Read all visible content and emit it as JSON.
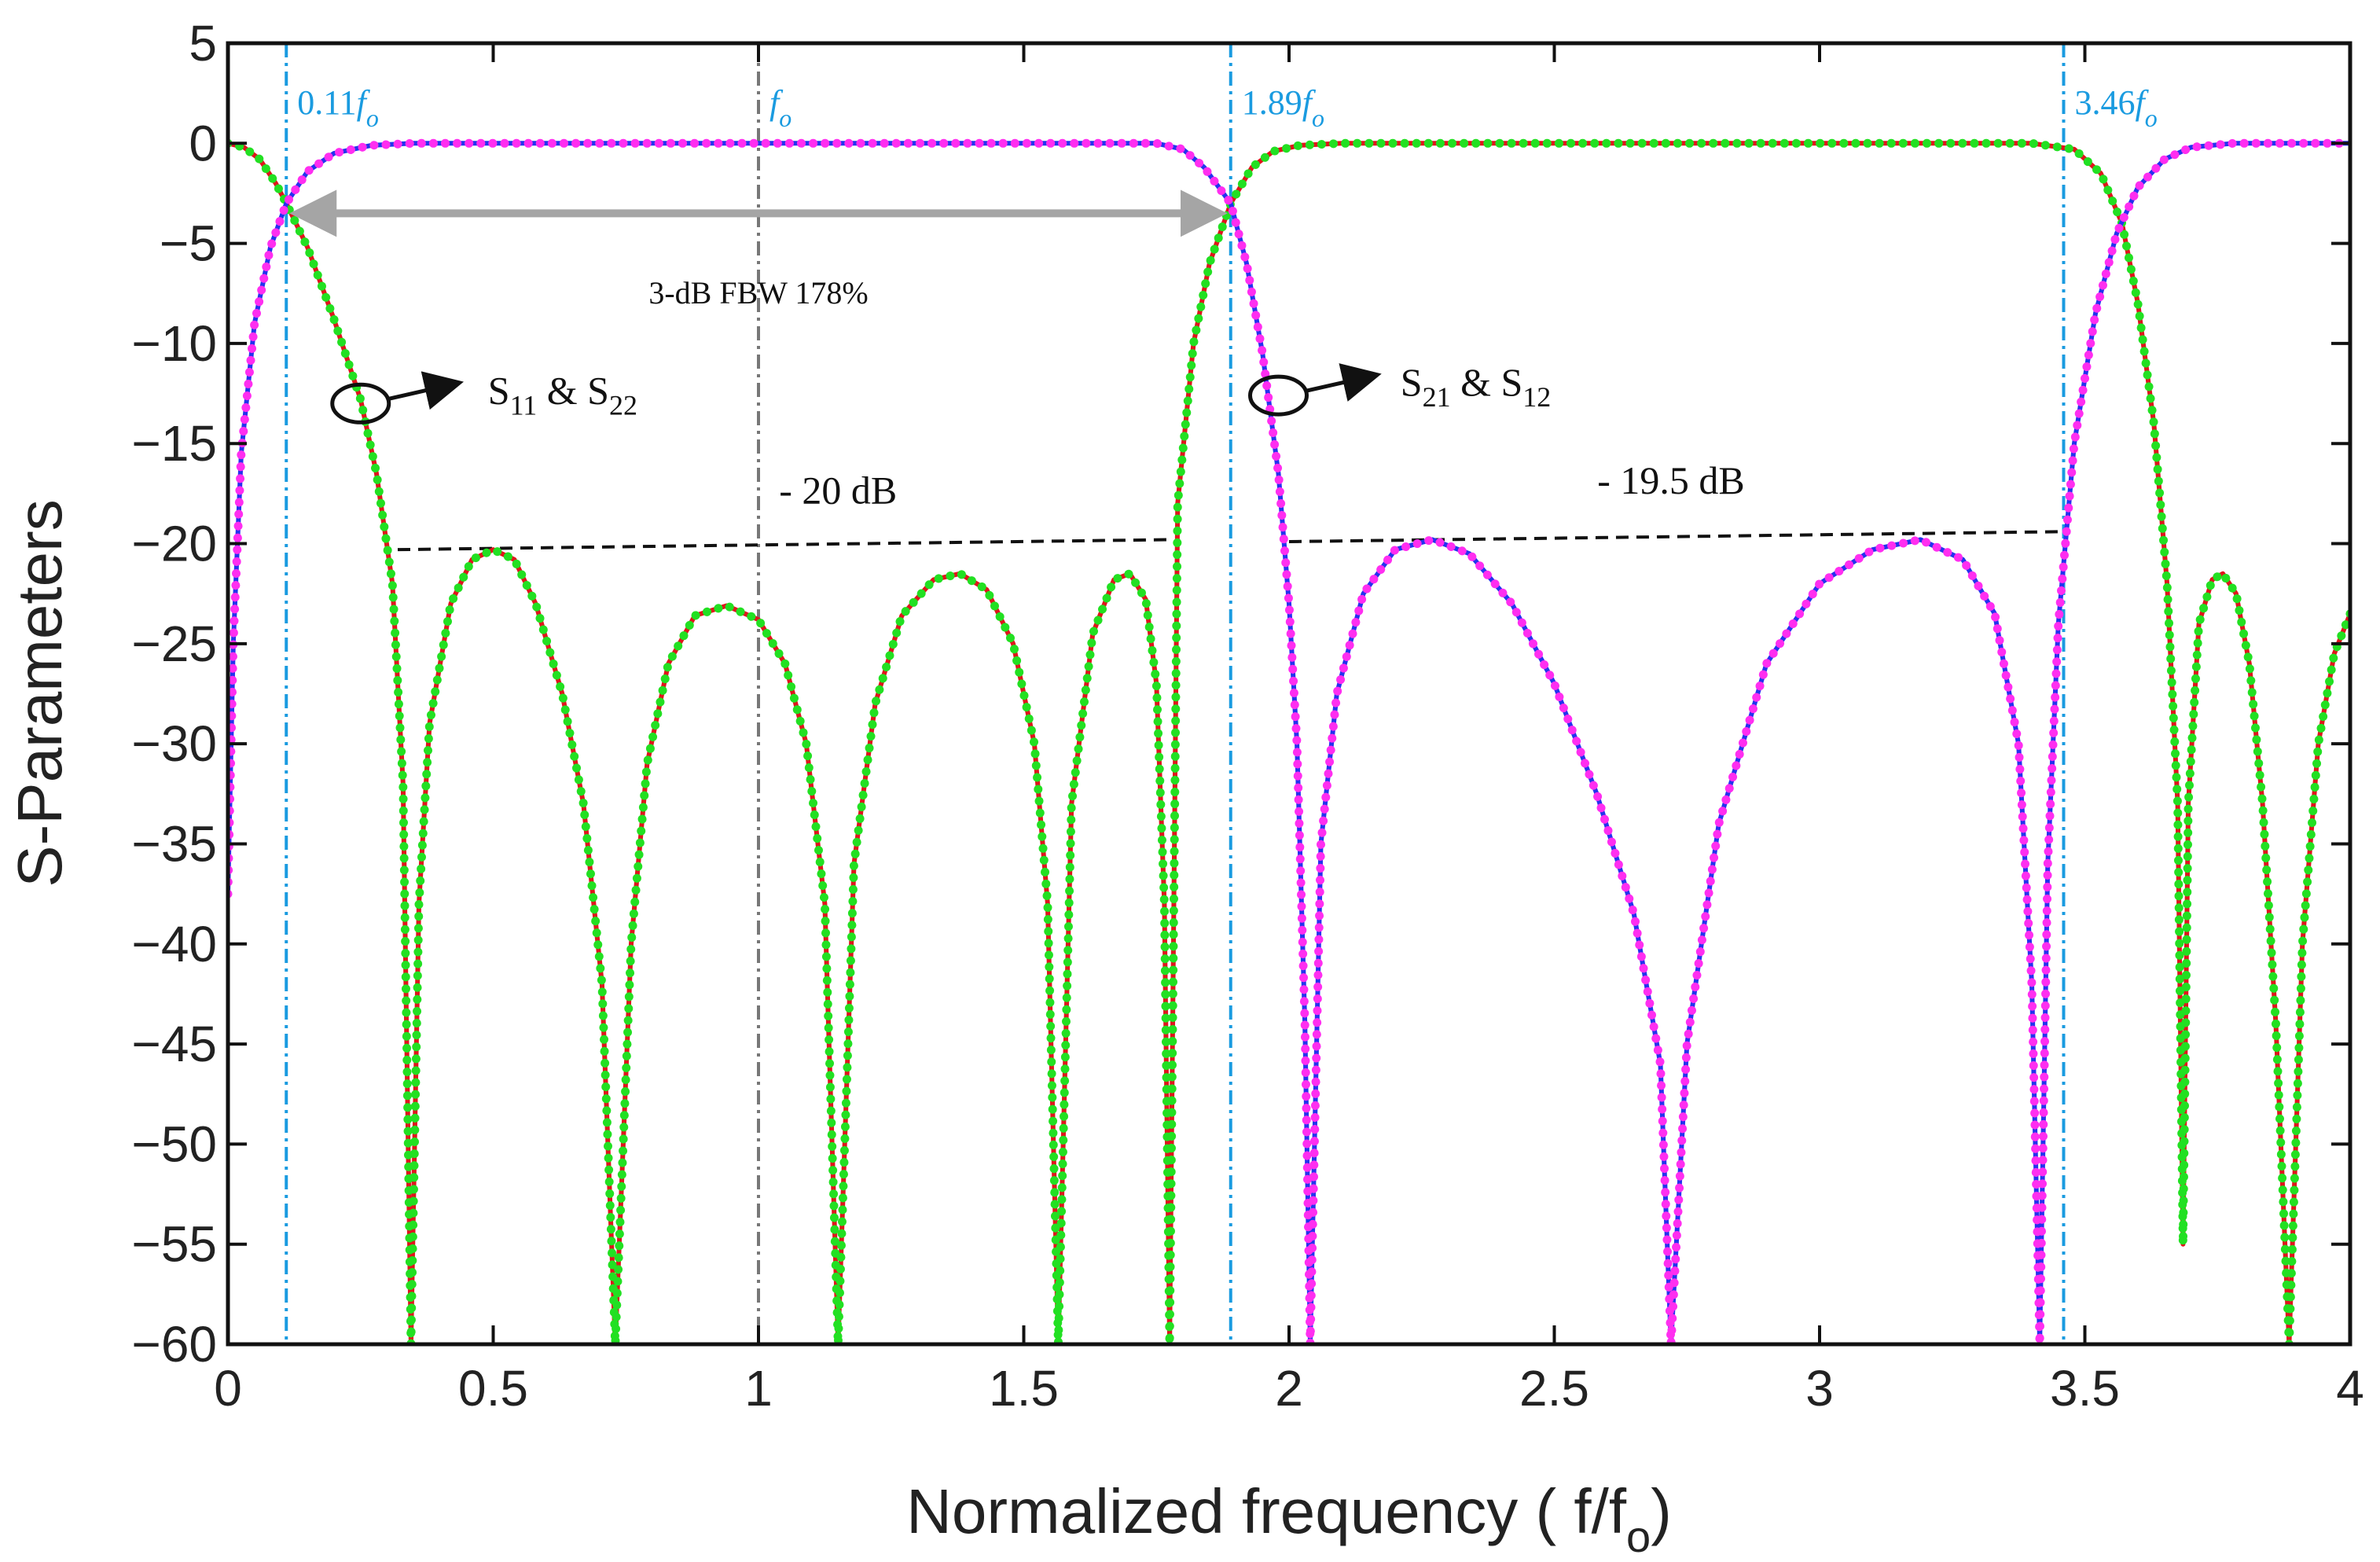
{
  "chart_data": {
    "type": "line",
    "xlabel": "Normalized frequency ( f/f",
    "xlabel_sub": "o",
    "xlabel_end": ")",
    "ylabel": "S-Parameters",
    "xlim": [
      0,
      4
    ],
    "ylim": [
      -60,
      5
    ],
    "xticks": [
      "0",
      "0.5",
      "1",
      "1.5",
      "2",
      "2.5",
      "3",
      "3.5",
      "4"
    ],
    "yticks": [
      "5",
      "0",
      "−5",
      "−10",
      "−15",
      "−20",
      "−25",
      "−30",
      "−35",
      "−40",
      "−45",
      "−50",
      "−55",
      "−60"
    ],
    "xtick_values": [
      0,
      0.5,
      1,
      1.5,
      2,
      2.5,
      3,
      3.5,
      4
    ],
    "ytick_values": [
      5,
      0,
      -5,
      -10,
      -15,
      -20,
      -25,
      -30,
      -35,
      -40,
      -45,
      -50,
      -55,
      -60
    ],
    "series": [
      {
        "name": "S11 & S22",
        "line_color": "#e0141c",
        "dot_color": "#22e022",
        "points": [
          [
            0.0,
            0.0
          ],
          [
            0.03,
            -0.2
          ],
          [
            0.06,
            -0.8
          ],
          [
            0.09,
            -2.0
          ],
          [
            0.11,
            -3.0
          ],
          [
            0.15,
            -5.2
          ],
          [
            0.2,
            -8.8
          ],
          [
            0.25,
            -12.8
          ],
          [
            0.28,
            -16.5
          ],
          [
            0.31,
            -22.0
          ],
          [
            0.33,
            -32.0
          ],
          [
            0.345,
            -60.0
          ],
          [
            0.36,
            -38.0
          ],
          [
            0.38,
            -29.0
          ],
          [
            0.42,
            -23.0
          ],
          [
            0.46,
            -20.8
          ],
          [
            0.5,
            -20.3
          ],
          [
            0.54,
            -20.8
          ],
          [
            0.58,
            -23.0
          ],
          [
            0.63,
            -27.5
          ],
          [
            0.67,
            -33.0
          ],
          [
            0.705,
            -42.0
          ],
          [
            0.73,
            -60.0
          ],
          [
            0.76,
            -40.0
          ],
          [
            0.79,
            -31.0
          ],
          [
            0.83,
            -26.0
          ],
          [
            0.88,
            -23.6
          ],
          [
            0.94,
            -23.1
          ],
          [
            1.0,
            -23.8
          ],
          [
            1.05,
            -26.0
          ],
          [
            1.09,
            -30.0
          ],
          [
            1.125,
            -38.0
          ],
          [
            1.15,
            -60.0
          ],
          [
            1.18,
            -36.0
          ],
          [
            1.22,
            -28.0
          ],
          [
            1.27,
            -23.6
          ],
          [
            1.33,
            -21.8
          ],
          [
            1.38,
            -21.5
          ],
          [
            1.43,
            -22.3
          ],
          [
            1.48,
            -25.0
          ],
          [
            1.52,
            -30.0
          ],
          [
            1.545,
            -38.0
          ],
          [
            1.565,
            -60.0
          ],
          [
            1.59,
            -33.0
          ],
          [
            1.63,
            -24.5
          ],
          [
            1.67,
            -21.8
          ],
          [
            1.7,
            -21.5
          ],
          [
            1.73,
            -22.8
          ],
          [
            1.75,
            -27.0
          ],
          [
            1.765,
            -38.0
          ],
          [
            1.775,
            -60.0
          ],
          [
            1.79,
            -18.0
          ],
          [
            1.82,
            -10.0
          ],
          [
            1.85,
            -6.0
          ],
          [
            1.89,
            -3.0
          ],
          [
            1.93,
            -1.2
          ],
          [
            1.97,
            -0.4
          ],
          [
            2.02,
            -0.1
          ],
          [
            2.1,
            0.0
          ],
          [
            3.4,
            0.0
          ],
          [
            3.48,
            -0.3
          ],
          [
            3.53,
            -1.5
          ],
          [
            3.57,
            -4.0
          ],
          [
            3.6,
            -8.0
          ],
          [
            3.63,
            -14.0
          ],
          [
            3.655,
            -22.0
          ],
          [
            3.675,
            -33.0
          ],
          [
            3.685,
            -55.0
          ],
          [
            3.695,
            -33.0
          ],
          [
            3.715,
            -24.0
          ],
          [
            3.74,
            -21.8
          ],
          [
            3.76,
            -21.5
          ],
          [
            3.785,
            -22.5
          ],
          [
            3.81,
            -26.0
          ],
          [
            3.835,
            -33.0
          ],
          [
            3.86,
            -44.0
          ],
          [
            3.885,
            -60.0
          ],
          [
            3.91,
            -40.0
          ],
          [
            3.94,
            -30.0
          ],
          [
            3.97,
            -25.5
          ],
          [
            4.0,
            -23.5
          ]
        ]
      },
      {
        "name": "S21 & S12",
        "line_color": "#2233ee",
        "dot_color": "#ff2ef0",
        "points": [
          [
            0.0,
            -37.5
          ],
          [
            0.01,
            -25.0
          ],
          [
            0.025,
            -15.5
          ],
          [
            0.05,
            -9.0
          ],
          [
            0.08,
            -5.2
          ],
          [
            0.11,
            -3.0
          ],
          [
            0.15,
            -1.4
          ],
          [
            0.2,
            -0.5
          ],
          [
            0.27,
            -0.1
          ],
          [
            0.35,
            0.0
          ],
          [
            1.75,
            0.0
          ],
          [
            1.8,
            -0.3
          ],
          [
            1.84,
            -1.2
          ],
          [
            1.89,
            -3.0
          ],
          [
            1.92,
            -6.0
          ],
          [
            1.95,
            -10.5
          ],
          [
            1.98,
            -16.5
          ],
          [
            2.0,
            -23.0
          ],
          [
            2.015,
            -30.0
          ],
          [
            2.03,
            -44.0
          ],
          [
            2.04,
            -60.0
          ],
          [
            2.06,
            -35.0
          ],
          [
            2.09,
            -27.5
          ],
          [
            2.14,
            -22.5
          ],
          [
            2.2,
            -20.3
          ],
          [
            2.27,
            -19.8
          ],
          [
            2.34,
            -20.5
          ],
          [
            2.42,
            -23.0
          ],
          [
            2.5,
            -27.0
          ],
          [
            2.58,
            -32.5
          ],
          [
            2.65,
            -38.5
          ],
          [
            2.7,
            -46.0
          ],
          [
            2.72,
            -60.0
          ],
          [
            2.75,
            -45.0
          ],
          [
            2.81,
            -34.0
          ],
          [
            2.9,
            -26.0
          ],
          [
            3.0,
            -22.0
          ],
          [
            3.1,
            -20.3
          ],
          [
            3.19,
            -19.8
          ],
          [
            3.27,
            -20.8
          ],
          [
            3.33,
            -23.5
          ],
          [
            3.375,
            -30.0
          ],
          [
            3.4,
            -42.0
          ],
          [
            3.415,
            -60.0
          ],
          [
            3.43,
            -36.0
          ],
          [
            3.45,
            -24.0
          ],
          [
            3.48,
            -15.0
          ],
          [
            3.52,
            -8.5
          ],
          [
            3.56,
            -4.5
          ],
          [
            3.6,
            -2.2
          ],
          [
            3.65,
            -0.8
          ],
          [
            3.7,
            -0.2
          ],
          [
            3.78,
            0.0
          ],
          [
            4.0,
            0.0
          ]
        ]
      }
    ],
    "vlines": [
      {
        "x": 0.11,
        "label": "0.11",
        "label_f": "f",
        "label_sub": "o",
        "color": "#1a9be0"
      },
      {
        "x": 1.0,
        "label": "",
        "label_f": "f",
        "label_sub": "o",
        "color": "#777777"
      },
      {
        "x": 1.89,
        "label": "1.89",
        "label_f": "f",
        "label_sub": "o",
        "color": "#1a9be0"
      },
      {
        "x": 3.46,
        "label": "3.46",
        "label_f": "f",
        "label_sub": "o",
        "color": "#1a9be0"
      }
    ],
    "fbw_arrow": {
      "x1": 0.11,
      "x2": 1.89,
      "y": -3.5,
      "label": "3-dB FBW 178%",
      "label_x": 1.0,
      "label_y": -8.0
    },
    "reference_lines": [
      {
        "x1": 0.32,
        "y1": -20.3,
        "x2": 1.78,
        "y2": -19.8,
        "label": "- 20 dB",
        "label_x": 1.15,
        "label_y": -18.0
      },
      {
        "x1": 2.0,
        "y1": -19.9,
        "x2": 3.46,
        "y2": -19.4,
        "label": "- 19.5 dB",
        "label_x": 2.72,
        "label_y": -17.5
      }
    ],
    "legend_annotations": [
      {
        "text": "S",
        "sub1": "11",
        "mid": " & S",
        "sub2": "22",
        "circle_x": 0.25,
        "circle_y": -13.0,
        "arrow_to_x": 0.43,
        "arrow_to_y": -12.0,
        "text_x": 0.49,
        "text_y": -13.0
      },
      {
        "text": "S",
        "sub1": "21",
        "mid": " & S",
        "sub2": "12",
        "circle_x": 1.98,
        "circle_y": -12.6,
        "arrow_to_x": 2.16,
        "arrow_to_y": -11.6,
        "text_x": 2.21,
        "text_y": -12.6
      }
    ]
  }
}
